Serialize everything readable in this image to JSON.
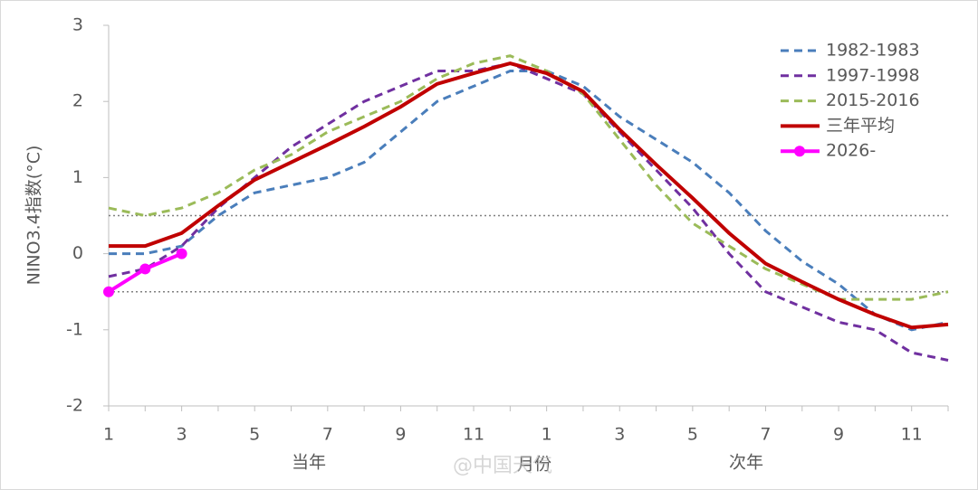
{
  "chart_data": {
    "type": "line",
    "y_label": "NINO3.4指数(°C)",
    "x_label": "月份",
    "period_labels": [
      "当年",
      "次年"
    ],
    "watermark": "@中国天气",
    "categories": [
      "1",
      null,
      "3",
      null,
      "5",
      null,
      "7",
      null,
      "9",
      null,
      "11",
      null,
      "1",
      null,
      "3",
      null,
      "5",
      null,
      "7",
      null,
      "9",
      null,
      "11",
      null
    ],
    "ylim": [
      -2,
      3
    ],
    "yticks": [
      -2,
      -1,
      0,
      1,
      2,
      3
    ],
    "reference_lines": [
      0.5,
      -0.5
    ],
    "legend": "upper right",
    "series": [
      {
        "name": "1982-1983",
        "color": "#4a7ebb",
        "dashed": true,
        "values": [
          0,
          0,
          0.1,
          0.5,
          0.8,
          0.9,
          1.0,
          1.2,
          1.6,
          2.0,
          2.2,
          2.4,
          2.4,
          2.2,
          1.8,
          1.5,
          1.2,
          0.8,
          0.3,
          -0.1,
          -0.4,
          -0.8,
          -1.0,
          -0.9
        ]
      },
      {
        "name": "1997-1998",
        "color": "#7030a0",
        "dashed": true,
        "values": [
          -0.3,
          -0.2,
          0.1,
          0.6,
          1.0,
          1.4,
          1.7,
          2.0,
          2.2,
          2.4,
          2.4,
          2.5,
          2.3,
          2.1,
          1.6,
          1.1,
          0.6,
          0.0,
          -0.5,
          -0.7,
          -0.9,
          -1.0,
          -1.3,
          -1.4
        ]
      },
      {
        "name": "2015-2016",
        "color": "#9bbb59",
        "dashed": true,
        "values": [
          0.6,
          0.5,
          0.6,
          0.8,
          1.1,
          1.3,
          1.6,
          1.8,
          2.0,
          2.3,
          2.5,
          2.6,
          2.4,
          2.1,
          1.5,
          0.9,
          0.4,
          0.1,
          -0.2,
          -0.4,
          -0.6,
          -0.6,
          -0.6,
          -0.5
        ]
      },
      {
        "name": "三年平均",
        "color": "#c00000",
        "dashed": false,
        "values": [
          0.1,
          0.1,
          0.27,
          0.63,
          0.97,
          1.2,
          1.43,
          1.67,
          1.93,
          2.23,
          2.37,
          2.5,
          2.37,
          2.13,
          1.63,
          1.17,
          0.73,
          0.27,
          -0.13,
          -0.37,
          -0.6,
          -0.8,
          -0.97,
          -0.93
        ]
      },
      {
        "name": "2026-",
        "color": "#ff00ff",
        "dashed": false,
        "markers": true,
        "values": [
          -0.5,
          -0.2,
          0,
          null,
          null,
          null,
          null,
          null,
          null,
          null,
          null,
          null,
          null,
          null,
          null,
          null,
          null,
          null,
          null,
          null,
          null,
          null,
          null,
          null
        ]
      }
    ]
  }
}
